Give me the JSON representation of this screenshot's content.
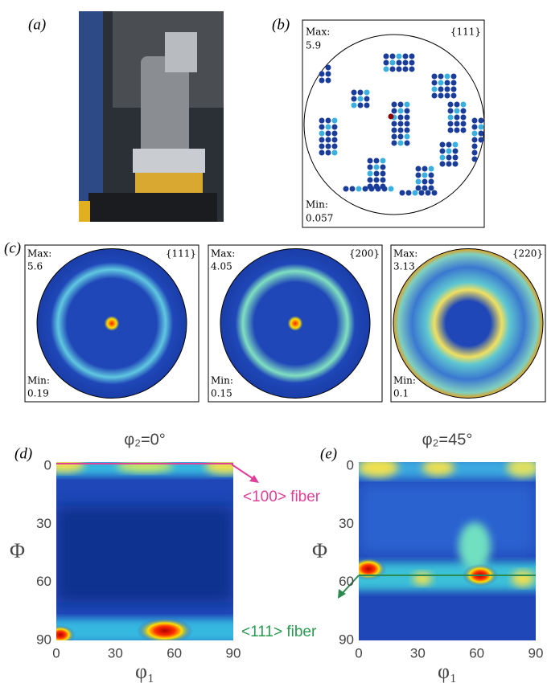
{
  "panels": {
    "a": {
      "label": "(a)"
    },
    "b": {
      "label": "(b)",
      "max_label": "Max:",
      "max": "5.9",
      "min_label": "Min:",
      "min": "0.057",
      "plane": "{111}"
    },
    "c": {
      "label": "(c)",
      "figures": [
        {
          "plane": "{111}",
          "max_label": "Max:",
          "max": "5.6",
          "min_label": "Min:",
          "min": "0.19"
        },
        {
          "plane": "{200}",
          "max_label": "Max:",
          "max": "4.05",
          "min_label": "Min:",
          "min": "0.15"
        },
        {
          "plane": "{220}",
          "max_label": "Max:",
          "max": "3.13",
          "min_label": "Min:",
          "min": "0.1"
        }
      ]
    },
    "d": {
      "label": "(d)",
      "title": "φ₂=0°",
      "y_label": "Φ",
      "x_label": "φ₁",
      "yticks": [
        0,
        30,
        60,
        90
      ],
      "xticks": [
        0,
        30,
        60,
        90
      ]
    },
    "e": {
      "label": "(e)",
      "title": "φ₂=45°",
      "y_label": "Φ",
      "x_label": "φ₁",
      "yticks": [
        0,
        30,
        60,
        90
      ],
      "xticks": [
        0,
        30,
        60,
        90
      ]
    }
  },
  "annotations": {
    "fiber_100": "<100> fiber",
    "fiber_111": "<111> fiber"
  }
}
